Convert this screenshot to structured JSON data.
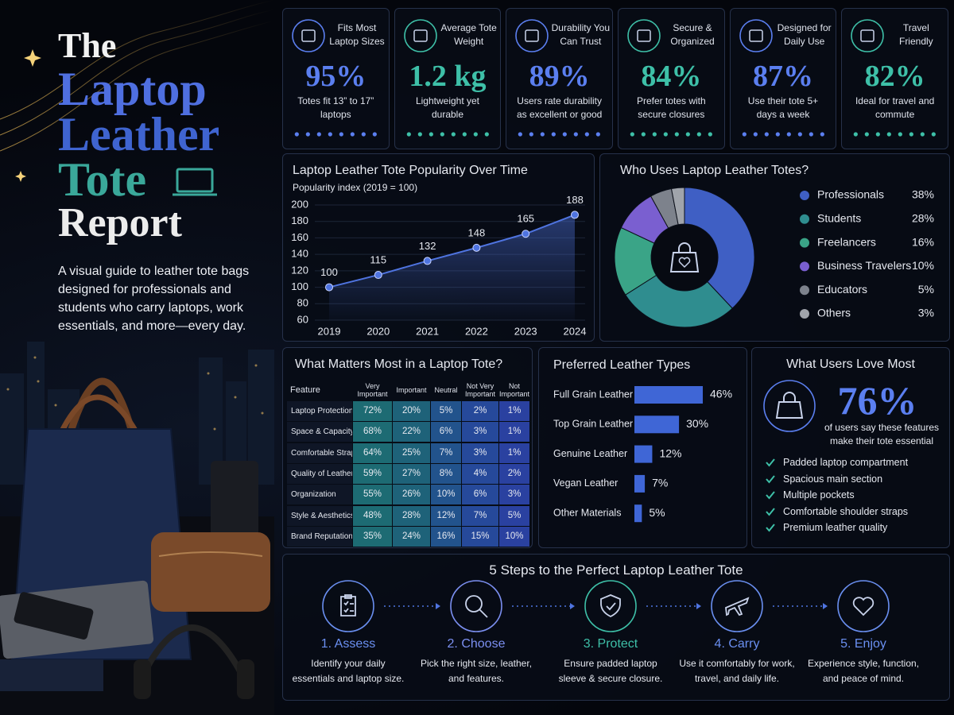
{
  "header": {
    "title_lines": [
      "The",
      "Laptop",
      "Leather",
      "Tote",
      "Report"
    ],
    "description": "A visual guide to leather tote bags designed for professionals and students who carry laptops, work essentials, and more—every day."
  },
  "stats": [
    {
      "label": "Fits Most Laptop Sizes",
      "value": "95%",
      "caption": "Totes fit 13” to 17” laptops",
      "color": "#5b7ff0"
    },
    {
      "label": "Average Tote Weight",
      "value": "1.2 kg",
      "caption": "Lightweight yet durable",
      "color": "#3ec0a8"
    },
    {
      "label": "Durability You Can Trust",
      "value": "89%",
      "caption": "Users rate durability as excellent or good",
      "color": "#5b7ff0"
    },
    {
      "label": "Secure & Organized",
      "value": "84%",
      "caption": "Prefer totes with secure closures",
      "color": "#3ec0a8"
    },
    {
      "label": "Designed for Daily Use",
      "value": "87%",
      "caption": "Use their tote 5+ days a week",
      "color": "#5b7ff0"
    },
    {
      "label": "Travel Friendly",
      "value": "82%",
      "caption": "Ideal for travel and commute",
      "color": "#3ec0a8"
    }
  ],
  "chart_data": [
    {
      "type": "line",
      "title": "Laptop Leather Tote Popularity Over Time",
      "y_label": "Popularity index (2019 = 100)",
      "categories": [
        "2019",
        "2020",
        "2021",
        "2022",
        "2023",
        "2024"
      ],
      "values": [
        100,
        115,
        132,
        148,
        165,
        188
      ],
      "color": "#4f74e0",
      "ylim": [
        60,
        200
      ],
      "yticks": [
        60,
        80,
        100,
        120,
        140,
        160,
        180,
        200
      ],
      "grid": true
    },
    {
      "type": "pie",
      "title": "Who Uses Laptop Leather Totes?",
      "categories": [
        "Professionals",
        "Students",
        "Freelancers",
        "Business Travelers",
        "Educators",
        "Others"
      ],
      "values": [
        38,
        28,
        16,
        10,
        5,
        3
      ],
      "value_labels": [
        "38%",
        "28%",
        "16%",
        "10%",
        "5%",
        "3%"
      ],
      "colors": [
        "#3f5fc4",
        "#2f8d8f",
        "#3aa487",
        "#7a5fd0",
        "#7d828c",
        "#a0a4ab"
      ]
    },
    {
      "type": "bar",
      "title": "Preferred Leather Types",
      "categories": [
        "Full Grain Leather",
        "Top Grain Leather",
        "Genuine Leather",
        "Vegan Leather",
        "Other Materials"
      ],
      "values": [
        46,
        30,
        12,
        7,
        5
      ],
      "value_labels": [
        "46%",
        "30%",
        "12%",
        "7%",
        "5%"
      ],
      "color": "#3f66d6"
    }
  ],
  "table": {
    "title": "What Matters Most in a Laptop Tote?",
    "columns": [
      "Feature",
      "Very Important",
      "Important",
      "Neutral",
      "Not Very Important",
      "Not Important"
    ],
    "rows": [
      [
        "Laptop Protection",
        "72%",
        "20%",
        "5%",
        "2%",
        "1%"
      ],
      [
        "Space & Capacity",
        "68%",
        "22%",
        "6%",
        "3%",
        "1%"
      ],
      [
        "Comfortable Straps",
        "64%",
        "25%",
        "7%",
        "3%",
        "1%"
      ],
      [
        "Quality of Leather",
        "59%",
        "27%",
        "8%",
        "4%",
        "2%"
      ],
      [
        "Organization",
        "55%",
        "26%",
        "10%",
        "6%",
        "3%"
      ],
      [
        "Style & Aesthetics",
        "48%",
        "28%",
        "12%",
        "7%",
        "5%"
      ],
      [
        "Brand Reputation",
        "35%",
        "24%",
        "16%",
        "15%",
        "10%"
      ]
    ]
  },
  "love": {
    "title": "What Users Love Most",
    "value": "76%",
    "color": "#5b7ff0",
    "caption": "of users say these features make their tote essential",
    "items": [
      "Padded laptop compartment",
      "Spacious main section",
      "Multiple pockets",
      "Comfortable shoulder straps",
      "Premium leather quality"
    ]
  },
  "steps": {
    "title": "5 Steps to the Perfect Laptop Leather Tote",
    "items": [
      {
        "title": "1. Assess",
        "text": "Identify your daily essentials and laptop size.",
        "color": "#6a8ff0"
      },
      {
        "title": "2. Choose",
        "text": "Pick the right size, leather, and features.",
        "color": "#7b8ff0"
      },
      {
        "title": "3. Protect",
        "text": "Ensure padded laptop sleeve & secure closure.",
        "color": "#3ec0a8"
      },
      {
        "title": "4. Carry",
        "text": "Use it comfortably for work, travel, and daily life.",
        "color": "#6a8ff0"
      },
      {
        "title": "5. Enjoy",
        "text": "Experience style, function, and peace of mind.",
        "color": "#6a8ff0"
      }
    ]
  }
}
